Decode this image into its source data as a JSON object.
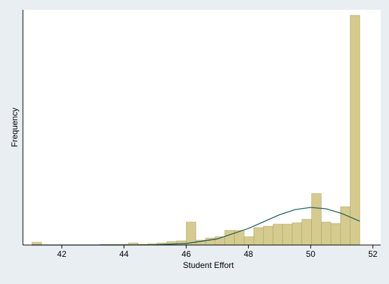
{
  "chart_data": {
    "type": "histogram",
    "xlabel": "Student Effort",
    "ylabel": "Frequency",
    "bins": [
      41.04,
      41.35,
      41.66,
      41.97,
      42.28,
      42.59,
      42.9,
      43.21,
      43.52,
      43.83,
      44.14,
      44.45,
      44.76,
      45.07,
      45.38,
      45.69,
      46.0,
      46.31,
      46.62,
      46.93,
      47.24,
      47.55,
      47.86,
      48.17,
      48.48,
      48.79,
      49.1,
      49.41,
      49.72,
      50.03,
      50.34,
      50.65,
      50.96,
      51.27,
      51.58
    ],
    "counts": [
      4,
      0,
      0,
      0,
      0,
      0,
      0,
      1,
      1,
      1,
      3,
      1,
      2,
      3,
      5,
      6,
      33,
      7,
      10,
      12,
      21,
      21,
      12,
      25,
      27,
      30,
      30,
      32,
      37,
      74,
      33,
      31,
      55,
      330
    ],
    "color": "#d5cb8e",
    "edge_color": "#a89c5e",
    "curve": {
      "x": [
        41.04,
        42,
        43,
        44,
        45,
        46,
        47,
        48,
        49,
        49.5,
        50,
        50.5,
        51,
        51.58
      ],
      "values": [
        0,
        0,
        0,
        0,
        0.4,
        2.2,
        8.8,
        23.8,
        43.5,
        50.9,
        54,
        52,
        45.3,
        34.2
      ],
      "color": "#1f5f5b"
    },
    "xlim": [
      40.75,
      52.25
    ],
    "ylim": [
      0,
      338
    ],
    "xticks": [
      42,
      44,
      46,
      48,
      50,
      52
    ]
  }
}
